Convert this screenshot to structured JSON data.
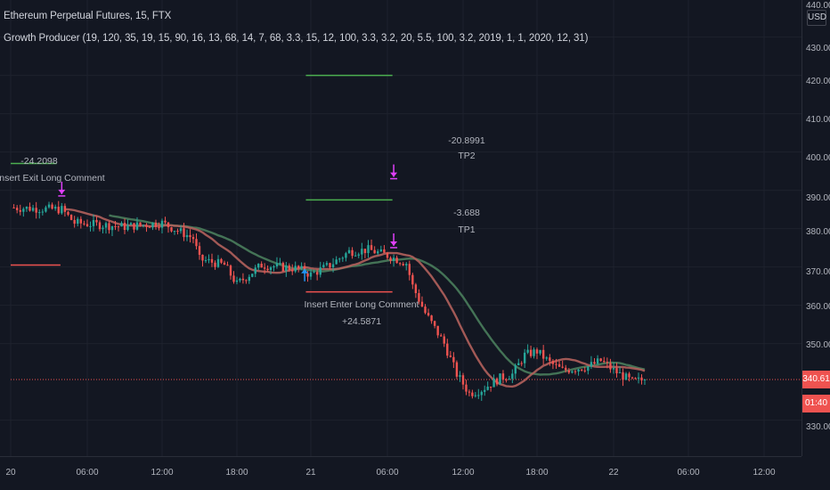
{
  "header": {
    "symbol_title": "Ethereum Perpetual Futures, 15, FTX",
    "indicator_title": "Growth Producer (19, 120, 35, 19, 15, 90, 16, 13, 68, 14, 7, 68, 3.3, 15, 12, 100, 3.3, 3.2, 20, 5.5, 100, 3.2, 2019, 1, 1, 2020, 12, 31)"
  },
  "price_axis": {
    "currency": "USD",
    "labels": [
      "440.00",
      "430.00",
      "420.00",
      "410.00",
      "400.00",
      "390.00",
      "380.00",
      "370.00",
      "360.00",
      "350.00",
      "330.00"
    ],
    "last_price": "340.61",
    "countdown": "01:40"
  },
  "time_axis": {
    "labels": [
      "20",
      "06:00",
      "12:00",
      "18:00",
      "21",
      "06:00",
      "12:00",
      "18:00",
      "22",
      "06:00",
      "12:00"
    ]
  },
  "colors": {
    "background": "#131722",
    "up": "#26a69a",
    "down": "#ef5350",
    "grid": "#1e222d",
    "tp_line": "#4caf50",
    "sl_line": "#ef5350",
    "exit_marker": "#e040fb",
    "entry_marker": "#2196f3",
    "ma_fast": "#b3605c",
    "ma_slow": "#4a7d5c"
  },
  "annotations": {
    "exit1_value": "-24.2098",
    "exit1_comment": "Insert Exit Long Comment",
    "tp2_value": "-20.8991",
    "tp2_label": "TP2",
    "tp1_value": "-3.688",
    "tp1_label": "TP1",
    "entry_comment": "Insert Enter Long Comment",
    "entry_value": "+24.5871"
  },
  "chart_data": {
    "type": "candlestick",
    "symbol": "Ethereum Perpetual Futures",
    "timeframe": "15",
    "exchange": "FTX",
    "ylim": [
      325,
      442
    ],
    "y_ticks": [
      330,
      350,
      360,
      370,
      380,
      390,
      400,
      410,
      420,
      430,
      440
    ],
    "x_ticks": [
      "20",
      "06:00",
      "12:00",
      "18:00",
      "21",
      "06:00",
      "12:00",
      "18:00",
      "22",
      "06:00",
      "12:00"
    ],
    "last_price": 340.61,
    "price_path": [
      [
        0.0,
        385.5
      ],
      [
        4.0,
        385.0
      ],
      [
        5.0,
        381.5
      ],
      [
        9.0,
        380.5
      ],
      [
        12.0,
        381.5
      ],
      [
        14.5,
        377.5
      ],
      [
        15.0,
        372.0
      ],
      [
        17.0,
        370.5
      ],
      [
        18.0,
        365.5
      ],
      [
        19.0,
        368.0
      ],
      [
        20.0,
        370.5
      ],
      [
        23.0,
        369.5
      ],
      [
        24.0,
        368.0
      ],
      [
        25.5,
        370.5
      ],
      [
        27.0,
        374.0
      ],
      [
        28.5,
        374.5
      ],
      [
        30.0,
        373.0
      ],
      [
        31.5,
        371.0
      ],
      [
        32.0,
        365.0
      ],
      [
        33.0,
        358.0
      ],
      [
        34.5,
        350.0
      ],
      [
        35.5,
        342.0
      ],
      [
        36.5,
        337.0
      ],
      [
        37.5,
        338.0
      ],
      [
        39.0,
        341.0
      ],
      [
        40.0,
        342.0
      ],
      [
        41.0,
        347.0
      ],
      [
        42.0,
        348.0
      ],
      [
        43.0,
        345.0
      ],
      [
        44.0,
        343.0
      ],
      [
        46.0,
        344.0
      ],
      [
        47.0,
        345.5
      ],
      [
        48.0,
        343.0
      ],
      [
        49.5,
        340.0
      ],
      [
        50.5,
        340.6
      ]
    ],
    "lines": [
      {
        "role": "tp",
        "start": 0.0,
        "end": 3.6,
        "price": 397.0
      },
      {
        "role": "sl",
        "start": 0.0,
        "end": 3.9,
        "price": 370.5
      },
      {
        "role": "tp",
        "start": 23.6,
        "end": 30.4,
        "price": 420.0
      },
      {
        "role": "tp",
        "start": 23.6,
        "end": 30.4,
        "price": 387.5
      },
      {
        "role": "sl",
        "start": 23.6,
        "end": 30.4,
        "price": 363.5
      },
      {
        "role": "last",
        "start": 0.0,
        "end": 52.0,
        "price": 340.61
      }
    ],
    "markers": [
      {
        "type": "exit",
        "x": 4.0,
        "price": 389.0
      },
      {
        "type": "exit",
        "x": 30.5,
        "price": 393.5
      },
      {
        "type": "exit",
        "x": 30.5,
        "price": 375.5
      },
      {
        "type": "entry",
        "x": 23.5,
        "price": 369.5
      }
    ]
  }
}
